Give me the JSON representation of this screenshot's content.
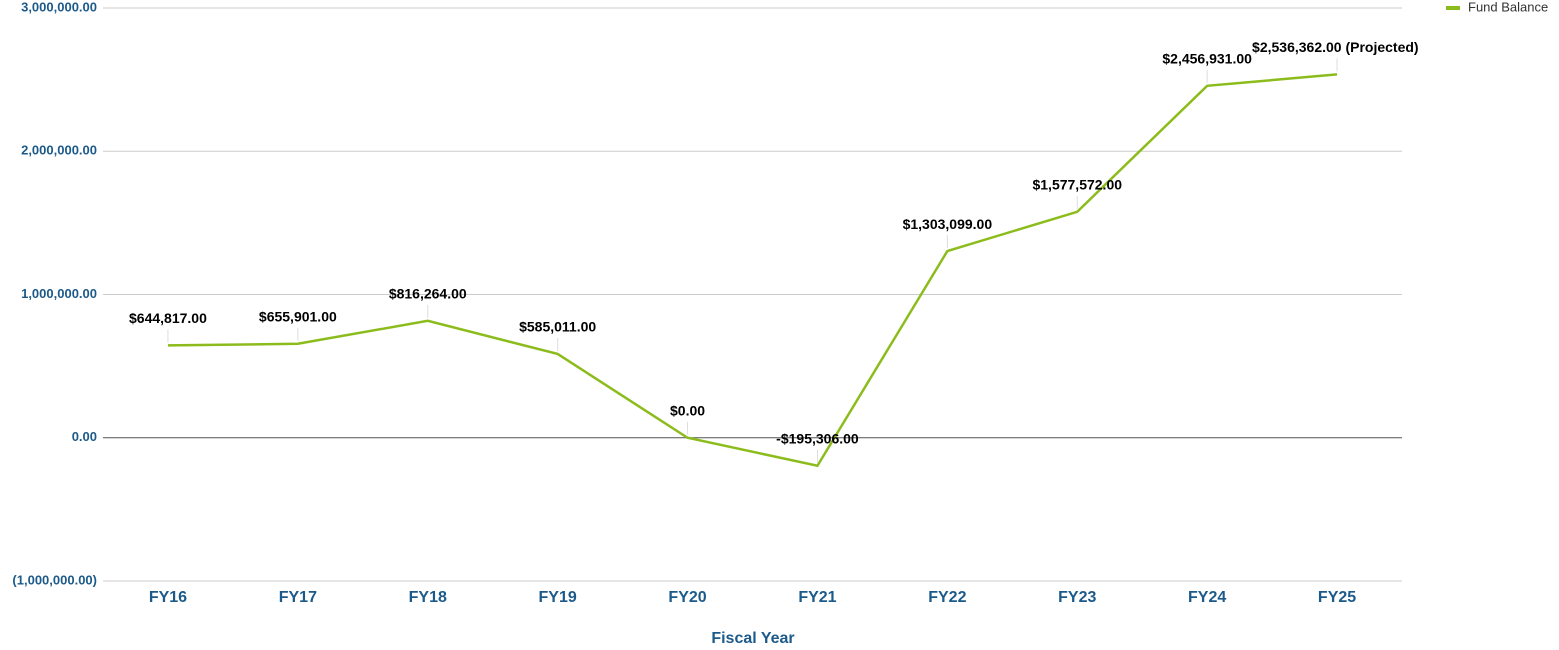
{
  "chart_data": {
    "type": "line",
    "x_label": "Fiscal Year",
    "categories": [
      "FY16",
      "FY17",
      "FY18",
      "FY19",
      "FY20",
      "FY21",
      "FY22",
      "FY23",
      "FY24",
      "FY25"
    ],
    "series": [
      {
        "name": "Fund Balance",
        "color": "#8cbc1c",
        "values": [
          644817,
          655901,
          816264,
          585011,
          0,
          -195306,
          1303099,
          1577572,
          2456931,
          2536362
        ],
        "value_labels": [
          "$644,817.00",
          "$655,901.00",
          "$816,264.00",
          "$585,011.00",
          "$0.00",
          "-$195,306.00",
          "$1,303,099.00",
          "$1,577,572.00",
          "$2,456,931.00",
          "$2,536,362.00 (Projected)"
        ]
      }
    ],
    "ylim": [
      -1000000,
      3000000
    ],
    "yticks": [
      {
        "value": -1000000,
        "label": "(1,000,000.00)"
      },
      {
        "value": 0,
        "label": "0.00"
      },
      {
        "value": 1000000,
        "label": "1,000,000.00"
      },
      {
        "value": 2000000,
        "label": "2,000,000.00"
      },
      {
        "value": 3000000,
        "label": "3,000,000.00"
      }
    ],
    "grid": true,
    "legend": "top-right"
  }
}
